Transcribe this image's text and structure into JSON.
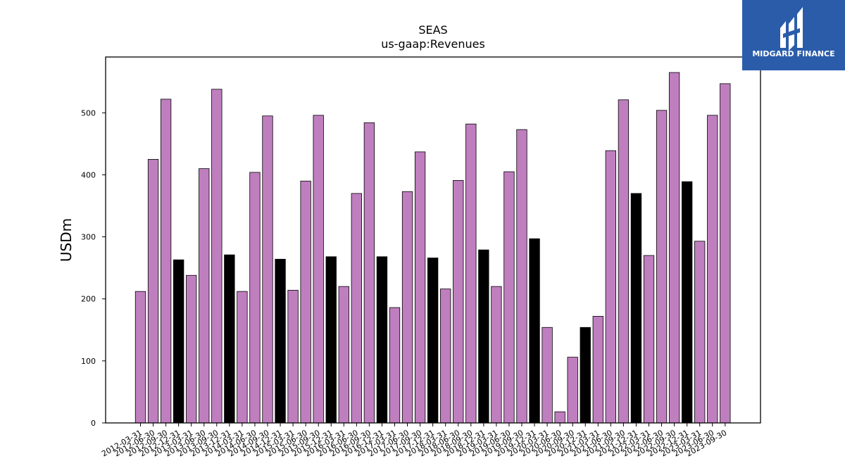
{
  "brand": {
    "name": "MIDGARD FINANCE",
    "color": "#2a5caa",
    "logo_icon": "midgard-m-logo-icon"
  },
  "chart_data": {
    "type": "bar",
    "title": "SEAS",
    "subtitle": "us-gaap:Revenues",
    "xlabel": "",
    "ylabel": "USDm",
    "ylim": [
      0,
      590
    ],
    "yticks": [
      0,
      100,
      200,
      300,
      400,
      500
    ],
    "grid": false,
    "colors": {
      "quarter": "#bf7fbf",
      "year_end": "#000000",
      "edge": "#000000"
    },
    "categories": [
      "2012-03-31",
      "2012-06-30",
      "2012-09-30",
      "2012-12-31",
      "2013-03-31",
      "2013-06-30",
      "2013-09-30",
      "2013-12-31",
      "2014-03-31",
      "2014-06-30",
      "2014-09-30",
      "2014-12-31",
      "2015-03-31",
      "2015-06-30",
      "2015-09-30",
      "2015-12-31",
      "2016-03-31",
      "2016-06-30",
      "2016-09-30",
      "2016-12-31",
      "2017-03-31",
      "2017-06-30",
      "2017-09-30",
      "2017-12-31",
      "2018-03-31",
      "2018-06-30",
      "2018-09-30",
      "2018-12-31",
      "2019-03-31",
      "2019-06-30",
      "2019-09-30",
      "2019-12-31",
      "2020-03-31",
      "2020-06-30",
      "2020-09-30",
      "2020-12-31",
      "2021-03-31",
      "2021-06-30",
      "2021-09-30",
      "2021-12-31",
      "2022-03-31",
      "2022-06-30",
      "2022-09-30",
      "2022-12-31",
      "2023-03-31",
      "2023-06-30",
      "2023-09-30"
    ],
    "values": [
      212,
      425,
      522,
      263,
      238,
      410,
      538,
      271,
      212,
      404,
      495,
      264,
      214,
      390,
      496,
      268,
      220,
      370,
      484,
      268,
      186,
      373,
      437,
      266,
      216,
      391,
      482,
      279,
      220,
      405,
      473,
      297,
      154,
      18,
      106,
      154,
      172,
      439,
      521,
      370,
      270,
      504,
      565,
      389,
      293,
      496,
      547
    ],
    "year_end_flags": [
      false,
      false,
      false,
      true,
      false,
      false,
      false,
      true,
      false,
      false,
      false,
      true,
      false,
      false,
      false,
      true,
      false,
      false,
      false,
      true,
      false,
      false,
      false,
      true,
      false,
      false,
      false,
      true,
      false,
      false,
      false,
      true,
      false,
      false,
      false,
      true,
      false,
      false,
      false,
      true,
      false,
      false,
      false,
      true,
      false,
      false,
      false
    ]
  }
}
